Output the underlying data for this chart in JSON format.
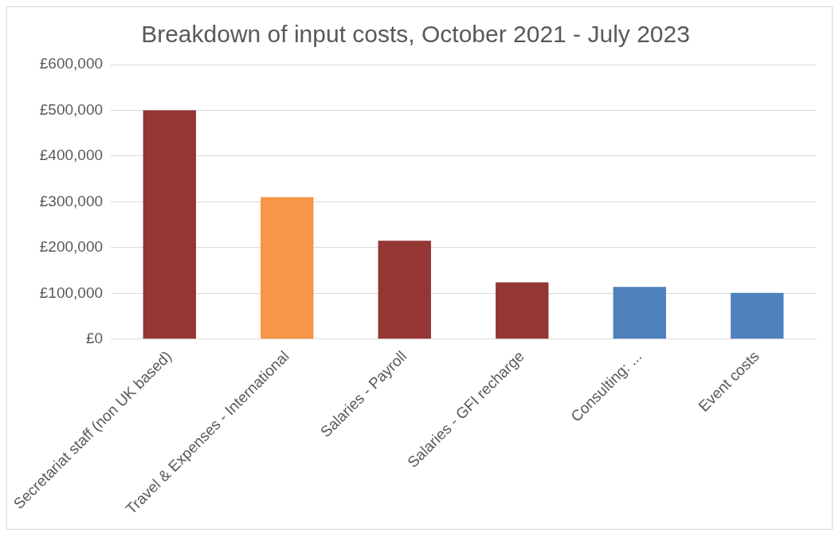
{
  "chart_data": {
    "type": "bar",
    "title": "Breakdown of input costs, October 2021 - July 2023",
    "categories": [
      "Secretariat staff (non UK based)",
      "Travel & Expenses - International",
      "Salaries - Payroll",
      "Salaries - GFI recharge",
      "Consulting: ...",
      "Event costs"
    ],
    "values": [
      500000,
      310000,
      215000,
      124000,
      114000,
      101000
    ],
    "colors": [
      "#943634",
      "#f79646",
      "#943634",
      "#943634",
      "#4f81bd",
      "#4f81bd"
    ],
    "ylim": [
      0,
      600000
    ],
    "yticks": [
      {
        "value": 0,
        "label": "£0"
      },
      {
        "value": 100000,
        "label": "£100,000"
      },
      {
        "value": 200000,
        "label": "£200,000"
      },
      {
        "value": 300000,
        "label": "£300,000"
      },
      {
        "value": 400000,
        "label": "£400,000"
      },
      {
        "value": 500000,
        "label": "£500,000"
      },
      {
        "value": 600000,
        "label": "£600,000"
      }
    ],
    "grid": "y",
    "legend": false
  }
}
